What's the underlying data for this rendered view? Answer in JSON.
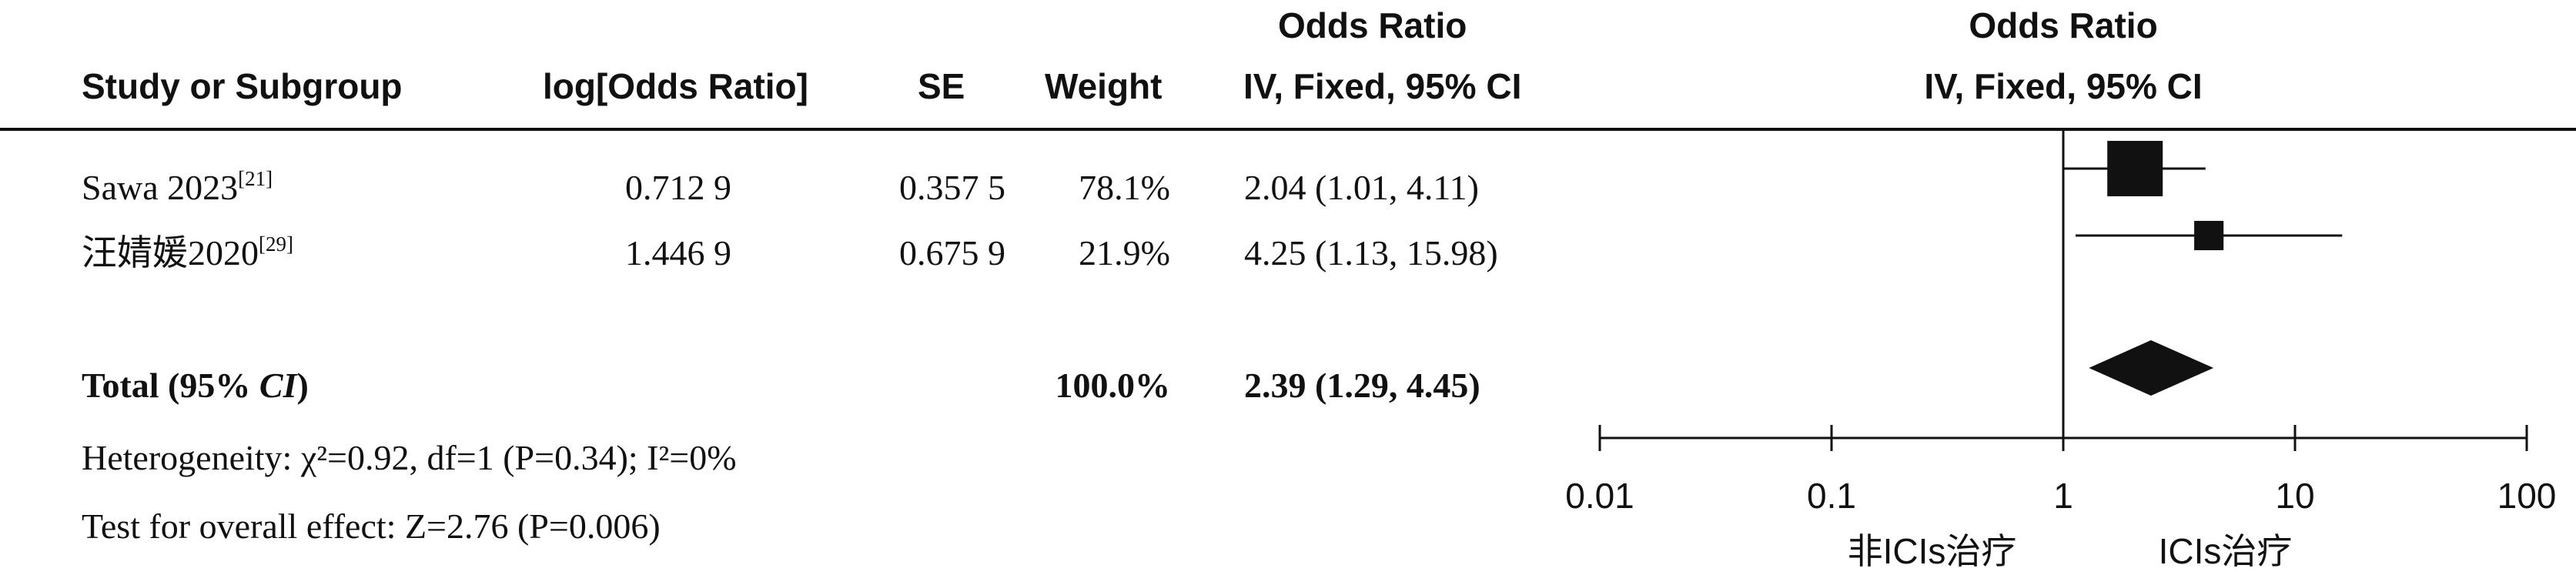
{
  "header": {
    "study_col": "Study or Subgroup",
    "logor_col": "log[Odds Ratio]",
    "se_col": "SE",
    "weight_col": "Weight",
    "or_title": "Odds Ratio",
    "or_method": "IV, Fixed, 95% CI",
    "plot_title": "Odds Ratio",
    "plot_method": "IV, Fixed, 95% CI"
  },
  "studies": [
    {
      "name": "Sawa 2023",
      "ref": "[21]",
      "log_or": "0.712 9",
      "se": "0.357 5",
      "weight": "78.1%",
      "ci_text": "2.04 (1.01, 4.11)"
    },
    {
      "name": "汪婧媛2020",
      "ref": "[29]",
      "log_or": "1.446 9",
      "se": "0.675 9",
      "weight": "21.9%",
      "ci_text": "4.25 (1.13, 15.98)"
    }
  ],
  "total": {
    "label_prefix": "Total (95% ",
    "label_ci": "CI",
    "label_suffix": ")",
    "weight": "100.0%",
    "ci_text": "2.39 (1.29, 4.45)"
  },
  "footnotes": {
    "heterogeneity": "Heterogeneity: χ²=0.92, df=1 (P=0.34); I²=0%",
    "overall_effect": "Test for overall effect: Z=2.76 (P=0.006)"
  },
  "chart_data": {
    "type": "forest",
    "scale": "log",
    "xlim": [
      0.01,
      100
    ],
    "ticks": [
      0.01,
      0.1,
      1,
      10,
      100
    ],
    "tick_labels": [
      "0.01",
      "0.1",
      "1",
      "10",
      "100"
    ],
    "left_label": "非ICIs治疗",
    "right_label": "ICIs治疗",
    "null_line": 1,
    "points": [
      {
        "study": "Sawa 2023",
        "or": 2.04,
        "lower": 1.01,
        "upper": 4.11,
        "weight": 78.1
      },
      {
        "study": "汪婧媛2020",
        "or": 4.25,
        "lower": 1.13,
        "upper": 15.98,
        "weight": 21.9
      }
    ],
    "summary": {
      "or": 2.39,
      "lower": 1.29,
      "upper": 4.45
    },
    "marker_color": "#111111"
  }
}
